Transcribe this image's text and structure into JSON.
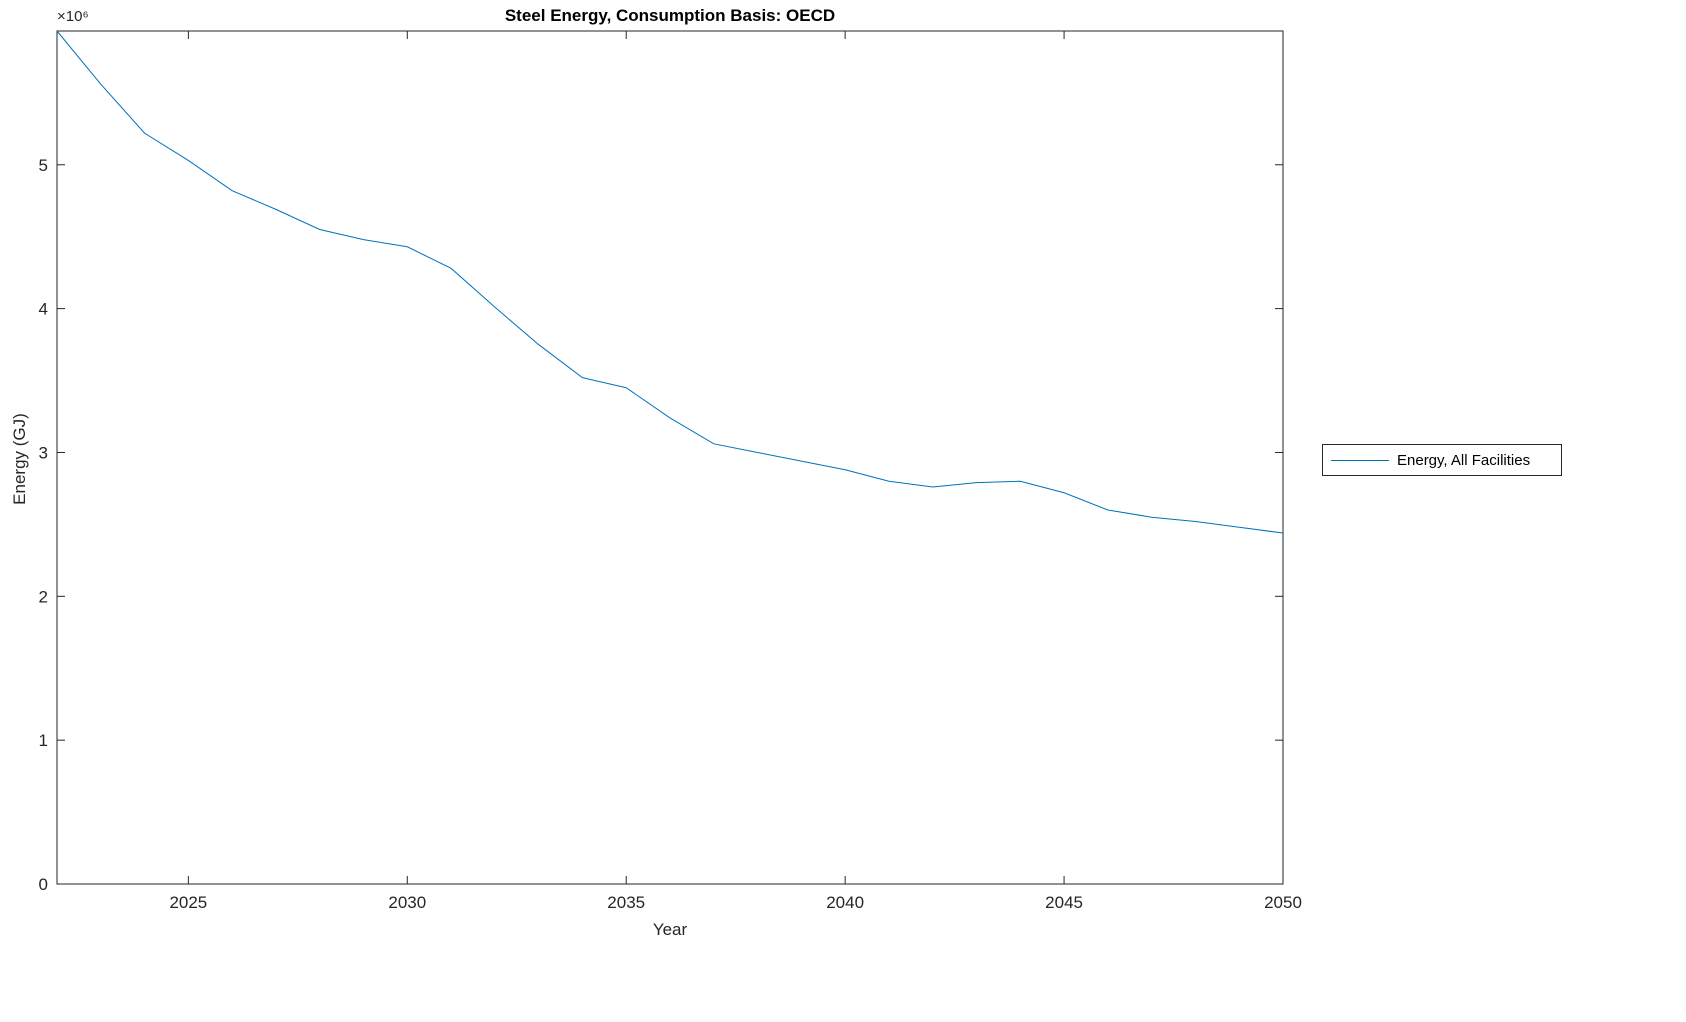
{
  "chart_data": {
    "type": "line",
    "title": "Steel Energy, Consumption Basis: OECD",
    "xlabel": "Year",
    "ylabel": "Energy (GJ)",
    "y_offset_label": "×10⁶",
    "line_color": "#0072BD",
    "axis_color": "#262626",
    "grid": false,
    "legend_position": "right-outside",
    "legend_entries": [
      "Energy, All Facilities"
    ],
    "xlim": [
      2022,
      2050
    ],
    "ylim": [
      0,
      5930000
    ],
    "xticks": [
      2025,
      2030,
      2035,
      2040,
      2045,
      2050
    ],
    "xtick_labels": [
      "2025",
      "2030",
      "2035",
      "2040",
      "2045",
      "2050"
    ],
    "yticks": [
      0,
      1000000,
      2000000,
      3000000,
      4000000,
      5000000
    ],
    "ytick_labels": [
      "0",
      "1",
      "2",
      "3",
      "4",
      "5"
    ],
    "x": [
      2022,
      2023,
      2024,
      2025,
      2026,
      2027,
      2028,
      2029,
      2030,
      2031,
      2032,
      2033,
      2034,
      2035,
      2036,
      2037,
      2038,
      2039,
      2040,
      2041,
      2042,
      2043,
      2044,
      2045,
      2046,
      2047,
      2048,
      2049,
      2050
    ],
    "series": [
      {
        "name": "Energy, All Facilities",
        "values": [
          5930000,
          5560000,
          5220000,
          5030000,
          4820000,
          4690000,
          4550000,
          4480000,
          4430000,
          4280000,
          4010000,
          3750000,
          3520000,
          3450000,
          3240000,
          3060000,
          3000000,
          2940000,
          2880000,
          2800000,
          2760000,
          2790000,
          2800000,
          2720000,
          2600000,
          2550000,
          2520000,
          2480000,
          2440000
        ]
      }
    ]
  },
  "legend": {
    "entry_label": "Energy, All Facilities"
  }
}
